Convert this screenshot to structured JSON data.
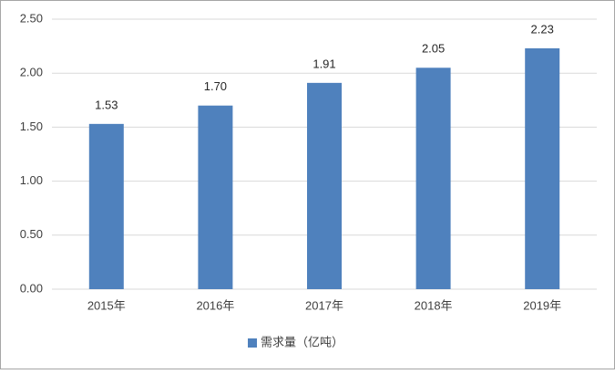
{
  "chart_data": {
    "type": "bar",
    "categories": [
      "2015年",
      "2016年",
      "2017年",
      "2018年",
      "2019年"
    ],
    "series": [
      {
        "name": "需求量（亿吨）",
        "color": "#4f81bd",
        "values": [
          1.53,
          1.7,
          1.91,
          2.05,
          2.23
        ],
        "value_labels": [
          "1.53",
          "1.70",
          "1.91",
          "2.05",
          "2.23"
        ]
      }
    ],
    "ylim": [
      0,
      2.5
    ],
    "yticks": [
      {
        "value": 0,
        "label": "0.00"
      },
      {
        "value": 0.5,
        "label": "0.50"
      },
      {
        "value": 1,
        "label": "1.00"
      },
      {
        "value": 1.5,
        "label": "1.50"
      },
      {
        "value": 2,
        "label": "2.00"
      },
      {
        "value": 2.5,
        "label": "2.50"
      }
    ],
    "grid": true,
    "legend": "bottom"
  }
}
